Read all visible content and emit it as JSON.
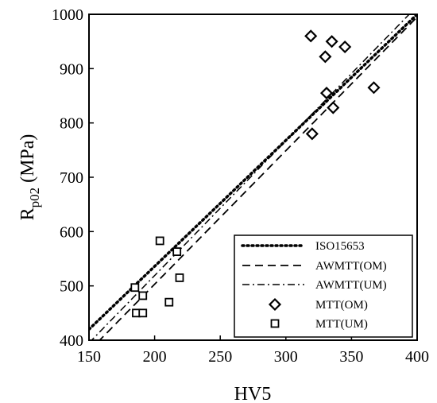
{
  "chart_data": {
    "type": "scatter",
    "xlabel": "HV5",
    "ylabel_main": "R",
    "ylabel_sub": "p02",
    "ylabel_unit": " (MPa)",
    "xlim": [
      150,
      400
    ],
    "ylim": [
      400,
      1000
    ],
    "xticks": [
      150,
      200,
      250,
      300,
      350,
      400
    ],
    "yticks": [
      400,
      500,
      600,
      700,
      800,
      900,
      1000
    ],
    "grid": false,
    "legend_position": "bottom-right",
    "lines": [
      {
        "name": "ISO15653",
        "style": "dotted",
        "x": [
          150,
          400
        ],
        "y": [
          420,
          1000
        ]
      },
      {
        "name": "AWMTT(OM)",
        "style": "dashed",
        "x": [
          150,
          400
        ],
        "y": [
          380,
          995
        ]
      },
      {
        "name": "AWMTT(UM)",
        "style": "dashdot",
        "x": [
          150,
          400
        ],
        "y": [
          395,
          1015
        ]
      }
    ],
    "points": [
      {
        "name": "MTT(OM)",
        "marker": "diamond",
        "x": [
          319,
          335,
          345,
          330,
          331,
          336,
          367,
          320
        ],
        "y": [
          960,
          950,
          940,
          922,
          855,
          828,
          865,
          780
        ]
      },
      {
        "name": "MTT(UM)",
        "marker": "square",
        "x": [
          204,
          185,
          217,
          191,
          219,
          211,
          186,
          191
        ],
        "y": [
          583,
          497,
          563,
          482,
          515,
          470,
          450,
          450
        ]
      }
    ]
  }
}
